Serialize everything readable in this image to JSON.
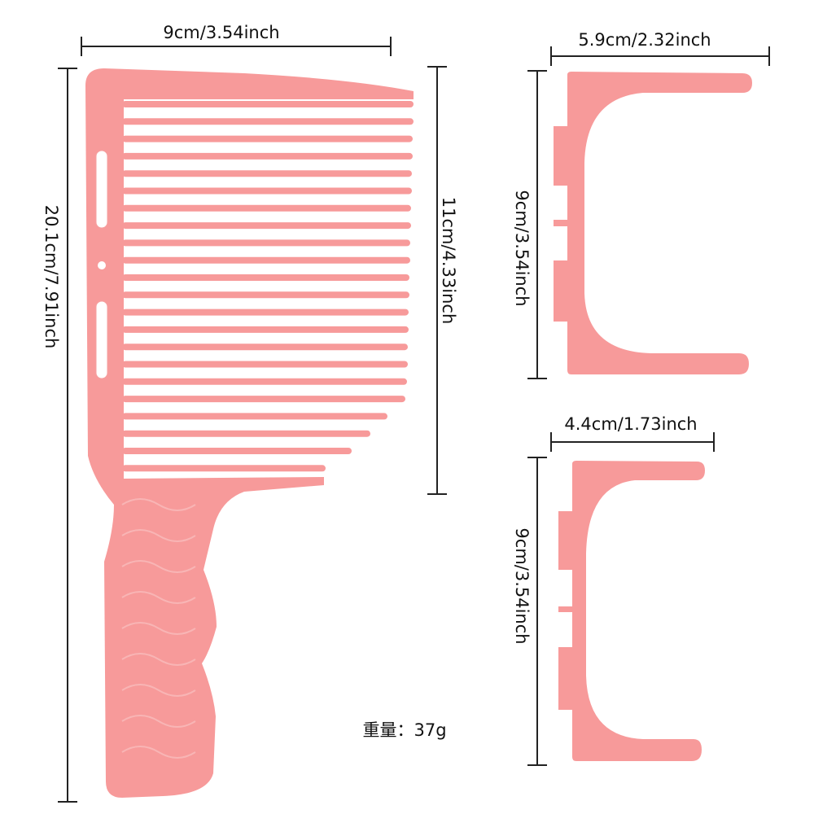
{
  "comb": {
    "width_label": "9cm/3.54inch",
    "height_label": "20.1cm/7.91inch",
    "teeth_label": "11cm/4.33inch",
    "weight_label": "重量：37g"
  },
  "guides": [
    {
      "width_label": "5.9cm/2.32inch",
      "height_label": "9cm/3.54inch"
    },
    {
      "width_label": "4.4cm/1.73inch",
      "height_label": "9cm/3.54inch"
    }
  ]
}
